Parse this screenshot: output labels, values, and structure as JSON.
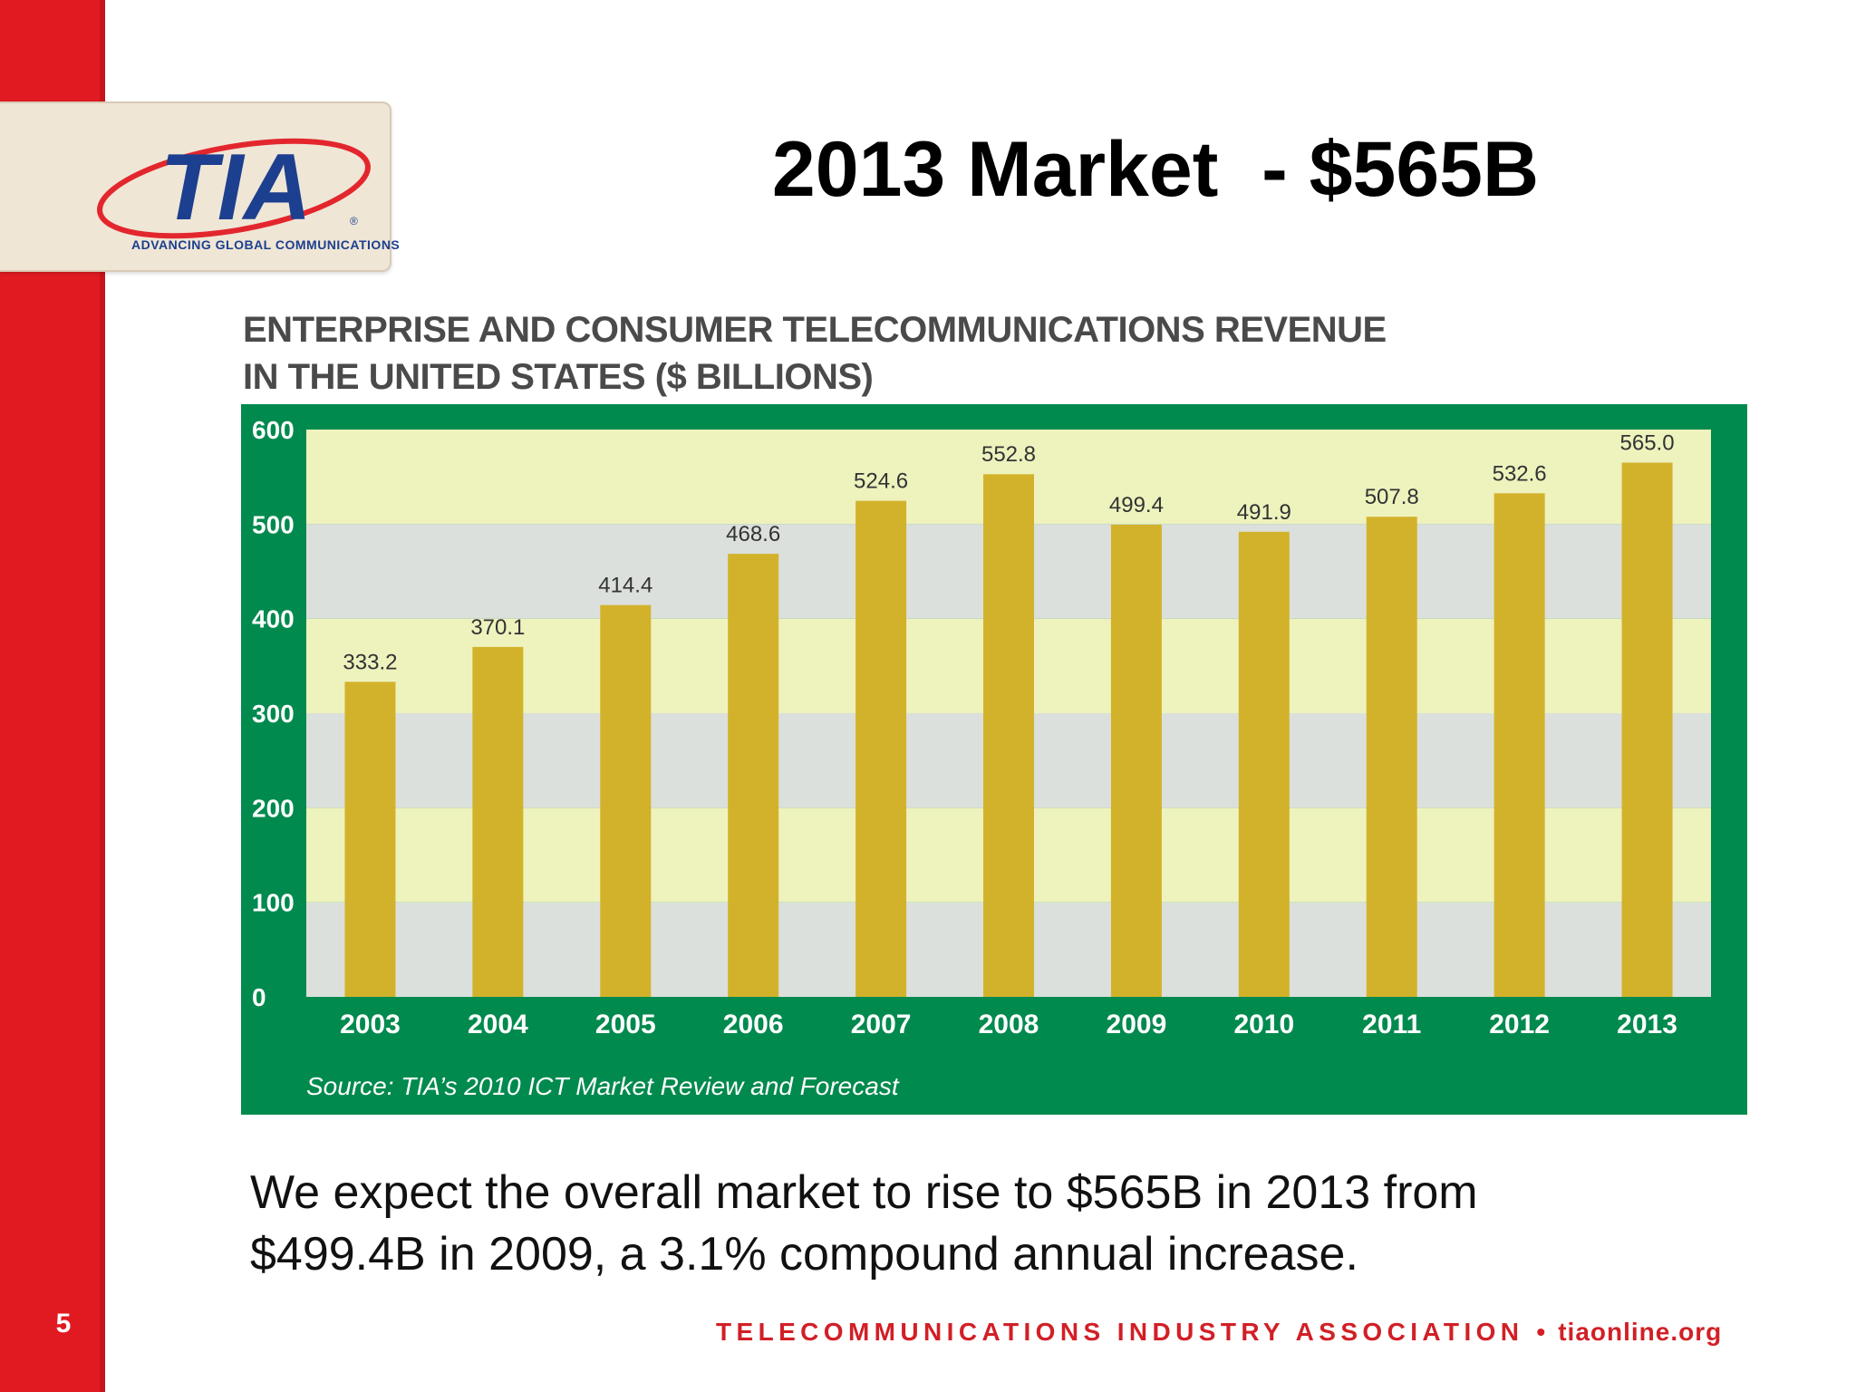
{
  "slide": {
    "title": "2013 Market  - $565B",
    "number": "5",
    "body_lines": [
      "We expect the overall market to rise to $565B in 2013 from",
      "$499.4B in 2009, a 3.1% compound annual increase."
    ]
  },
  "logo": {
    "letters": "TIA",
    "tagline": "ADVANCING GLOBAL COMMUNICATIONS",
    "registered": "®"
  },
  "footer": {
    "org": "TELECOMMUNICATIONS INDUSTRY ASSOCIATION",
    "separator": "•",
    "url": "tiaonline.org"
  },
  "colors": {
    "red_bar": "#e11a22",
    "panel_green": "#008a4e",
    "bar_gold": "#d3b22b",
    "band_yellow": "#eef2bd",
    "band_gray": "#dbe0dc",
    "logo_blue": "#1c3f8f",
    "footer_red": "#d21f26"
  },
  "chart_data": {
    "type": "bar",
    "title_lines": [
      "ENTERPRISE AND CONSUMER TELECOMMUNICATIONS REVENUE",
      "IN THE UNITED STATES ($ BILLIONS)"
    ],
    "categories": [
      "2003",
      "2004",
      "2005",
      "2006",
      "2007",
      "2008",
      "2009",
      "2010",
      "2011",
      "2012",
      "2013"
    ],
    "values": [
      333.2,
      370.1,
      414.4,
      468.6,
      524.6,
      552.8,
      499.4,
      491.9,
      507.8,
      532.6,
      565.0
    ],
    "value_labels": [
      "333.2",
      "370.1",
      "414.4",
      "468.6",
      "524.6",
      "552.8",
      "499.4",
      "491.9",
      "507.8",
      "532.6",
      "565.0"
    ],
    "ylim": [
      0,
      600
    ],
    "yticks": [
      0,
      100,
      200,
      300,
      400,
      500,
      600
    ],
    "xlabel": "",
    "ylabel": "",
    "grid": "alternating horizontal bands",
    "source": "Source: TIA’s 2010 ICT Market Review and Forecast"
  }
}
